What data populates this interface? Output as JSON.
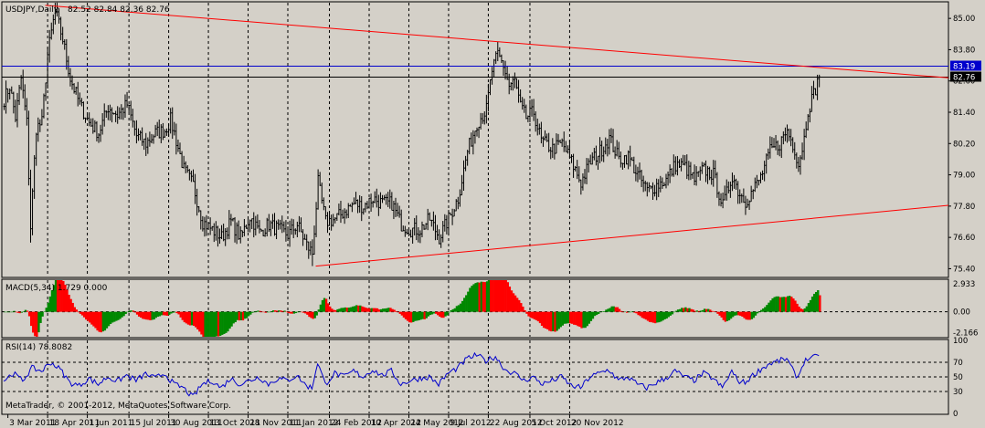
{
  "chart_data": {
    "type": "candlestick",
    "symbol": "USDJPY,Daily",
    "ohlc": "82.52 82.84 82.36 82.76",
    "copyright": "MetaTrader, © 2001-2012, MetaQuotes Software Corp.",
    "price_axis": [
      {
        "value": 85.0,
        "label": "85.00"
      },
      {
        "value": 83.8,
        "label": "83.80"
      },
      {
        "value": 82.6,
        "label": "82.60"
      },
      {
        "value": 81.4,
        "label": "81.40"
      },
      {
        "value": 80.2,
        "label": "80.20"
      },
      {
        "value": 79.0,
        "label": "79.00"
      },
      {
        "value": 77.8,
        "label": "77.80"
      },
      {
        "value": 76.6,
        "label": "76.60"
      },
      {
        "value": 75.4,
        "label": "75.40"
      }
    ],
    "price_range": [
      75.1,
      85.6
    ],
    "date_labels": [
      "3 Mar 2011",
      "18 Apr 2011",
      "1 Jun 2011",
      "15 Jul 2011",
      "30 Aug 2011",
      "13 Oct 2011",
      "28 Nov 2011",
      "11 Jan 2012",
      "24 Feb 2012",
      "10 Apr 2012",
      "24 May 2012",
      "9 Jul 2012",
      "22 Aug 2012",
      "5 Oct 2012",
      "20 Nov 2012"
    ],
    "anchors": [
      [
        0,
        81.9
      ],
      [
        3,
        82.4
      ],
      [
        6,
        81.2
      ],
      [
        9,
        82.7
      ],
      [
        12,
        81.0
      ],
      [
        14,
        77.0
      ],
      [
        17,
        80.8
      ],
      [
        20,
        81.0
      ],
      [
        23,
        83.6
      ],
      [
        27,
        85.3
      ],
      [
        31,
        84.2
      ],
      [
        35,
        82.7
      ],
      [
        40,
        81.7
      ],
      [
        45,
        81.0
      ],
      [
        50,
        80.6
      ],
      [
        55,
        81.6
      ],
      [
        60,
        81.3
      ],
      [
        65,
        81.7
      ],
      [
        70,
        80.5
      ],
      [
        75,
        80.2
      ],
      [
        80,
        80.6
      ],
      [
        85,
        80.7
      ],
      [
        88,
        81.1
      ],
      [
        90,
        80.6
      ],
      [
        95,
        79.2
      ],
      [
        100,
        78.6
      ],
      [
        105,
        77.2
      ],
      [
        110,
        76.9
      ],
      [
        115,
        76.6
      ],
      [
        120,
        77.2
      ],
      [
        125,
        76.6
      ],
      [
        130,
        77.4
      ],
      [
        135,
        76.8
      ],
      [
        140,
        77.1
      ],
      [
        145,
        76.9
      ],
      [
        150,
        76.7
      ],
      [
        155,
        77.1
      ],
      [
        160,
        76.3
      ],
      [
        163,
        76.0
      ],
      [
        166,
        78.7
      ],
      [
        170,
        77.2
      ],
      [
        175,
        77.3
      ],
      [
        180,
        77.6
      ],
      [
        185,
        77.9
      ],
      [
        190,
        77.8
      ],
      [
        195,
        78.1
      ],
      [
        200,
        77.9
      ],
      [
        205,
        77.9
      ],
      [
        210,
        77.1
      ],
      [
        215,
        76.9
      ],
      [
        220,
        76.9
      ],
      [
        225,
        77.3
      ],
      [
        230,
        76.6
      ],
      [
        235,
        77.3
      ],
      [
        240,
        78.1
      ],
      [
        245,
        79.9
      ],
      [
        250,
        81.0
      ],
      [
        255,
        81.5
      ],
      [
        258,
        83.0
      ],
      [
        261,
        83.6
      ],
      [
        264,
        83.2
      ],
      [
        267,
        82.4
      ],
      [
        270,
        82.6
      ],
      [
        273,
        81.6
      ],
      [
        276,
        81.2
      ],
      [
        280,
        81.4
      ],
      [
        284,
        80.3
      ],
      [
        290,
        80.0
      ],
      [
        295,
        80.2
      ],
      [
        300,
        79.5
      ],
      [
        305,
        78.7
      ],
      [
        310,
        79.5
      ],
      [
        315,
        79.9
      ],
      [
        320,
        80.4
      ],
      [
        325,
        79.6
      ],
      [
        330,
        79.7
      ],
      [
        335,
        79.0
      ],
      [
        340,
        78.4
      ],
      [
        345,
        78.6
      ],
      [
        350,
        78.8
      ],
      [
        355,
        79.4
      ],
      [
        360,
        79.3
      ],
      [
        365,
        78.8
      ],
      [
        370,
        79.2
      ],
      [
        375,
        79.0
      ],
      [
        378,
        78.3
      ],
      [
        380,
        77.8
      ],
      [
        385,
        79.0
      ],
      [
        388,
        78.4
      ],
      [
        392,
        78.0
      ],
      [
        395,
        78.3
      ],
      [
        400,
        78.9
      ],
      [
        405,
        79.9
      ],
      [
        410,
        80.2
      ],
      [
        414,
        80.7
      ],
      [
        418,
        80.0
      ],
      [
        420,
        79.4
      ],
      [
        423,
        80.4
      ],
      [
        425,
        81.5
      ],
      [
        428,
        82.1
      ],
      [
        431,
        82.76
      ]
    ],
    "resistance_line": {
      "from": [
        22,
        85.5
      ],
      "to": [
        460,
        82.95
      ]
    },
    "support_line": {
      "from": [
        165,
        75.5
      ],
      "to": [
        495,
        77.8
      ]
    },
    "hlines": [
      {
        "value": 83.19,
        "label": "83.19",
        "color": "#0000cc"
      },
      {
        "value": 82.76,
        "label": "82.76",
        "color": "#000000"
      }
    ],
    "macd": {
      "label": "MACD(5,34) 1.729 0.000",
      "axis": [
        {
          "value": 2.933,
          "label": "2.933"
        },
        {
          "value": 0.0,
          "label": "0.00"
        },
        {
          "value": -2.166,
          "label": "-2.166"
        }
      ],
      "range": [
        -2.6,
        3.3
      ]
    },
    "rsi": {
      "label": "RSI(14) 78.8082",
      "axis": [
        {
          "value": 100,
          "label": "100"
        },
        {
          "value": 70,
          "label": "70"
        },
        {
          "value": 50,
          "label": "50"
        },
        {
          "value": 30,
          "label": "30"
        },
        {
          "value": 0,
          "label": "0"
        }
      ],
      "range": [
        0,
        100
      ],
      "anchors": [
        [
          0,
          45
        ],
        [
          5,
          55
        ],
        [
          10,
          45
        ],
        [
          15,
          62
        ],
        [
          20,
          58
        ],
        [
          25,
          70
        ],
        [
          30,
          60
        ],
        [
          35,
          42
        ],
        [
          40,
          38
        ],
        [
          45,
          48
        ],
        [
          50,
          40
        ],
        [
          55,
          50
        ],
        [
          60,
          44
        ],
        [
          65,
          52
        ],
        [
          70,
          45
        ],
        [
          75,
          54
        ],
        [
          80,
          48
        ],
        [
          85,
          55
        ],
        [
          90,
          40
        ],
        [
          95,
          35
        ],
        [
          100,
          22
        ],
        [
          105,
          40
        ],
        [
          110,
          45
        ],
        [
          115,
          35
        ],
        [
          120,
          48
        ],
        [
          125,
          40
        ],
        [
          130,
          45
        ],
        [
          135,
          50
        ],
        [
          140,
          40
        ],
        [
          145,
          48
        ],
        [
          150,
          45
        ],
        [
          155,
          52
        ],
        [
          160,
          38
        ],
        [
          163,
          35
        ],
        [
          166,
          70
        ],
        [
          170,
          40
        ],
        [
          175,
          55
        ],
        [
          180,
          50
        ],
        [
          185,
          58
        ],
        [
          190,
          50
        ],
        [
          195,
          60
        ],
        [
          200,
          52
        ],
        [
          205,
          58
        ],
        [
          210,
          40
        ],
        [
          215,
          45
        ],
        [
          220,
          48
        ],
        [
          225,
          50
        ],
        [
          230,
          40
        ],
        [
          235,
          55
        ],
        [
          240,
          62
        ],
        [
          245,
          75
        ],
        [
          250,
          80
        ],
        [
          255,
          72
        ],
        [
          260,
          78
        ],
        [
          265,
          60
        ],
        [
          270,
          55
        ],
        [
          275,
          45
        ],
        [
          280,
          50
        ],
        [
          285,
          40
        ],
        [
          290,
          45
        ],
        [
          295,
          50
        ],
        [
          300,
          38
        ],
        [
          305,
          35
        ],
        [
          310,
          50
        ],
        [
          315,
          55
        ],
        [
          320,
          60
        ],
        [
          325,
          45
        ],
        [
          330,
          50
        ],
        [
          335,
          40
        ],
        [
          340,
          35
        ],
        [
          345,
          42
        ],
        [
          350,
          48
        ],
        [
          355,
          58
        ],
        [
          360,
          50
        ],
        [
          365,
          45
        ],
        [
          370,
          55
        ],
        [
          375,
          48
        ],
        [
          378,
          40
        ],
        [
          380,
          35
        ],
        [
          385,
          58
        ],
        [
          388,
          45
        ],
        [
          392,
          42
        ],
        [
          395,
          50
        ],
        [
          400,
          60
        ],
        [
          405,
          68
        ],
        [
          410,
          72
        ],
        [
          414,
          75
        ],
        [
          418,
          55
        ],
        [
          420,
          50
        ],
        [
          423,
          70
        ],
        [
          425,
          75
        ],
        [
          428,
          76
        ],
        [
          431,
          79
        ]
      ]
    },
    "colors": {
      "background": "#d4d0c8",
      "bars": "#000000",
      "trendline": "#ff0000",
      "hline_blue": "#0000cc",
      "macd_up": "#008800",
      "macd_down": "#ff0000",
      "rsi_line": "#0000cc"
    }
  }
}
